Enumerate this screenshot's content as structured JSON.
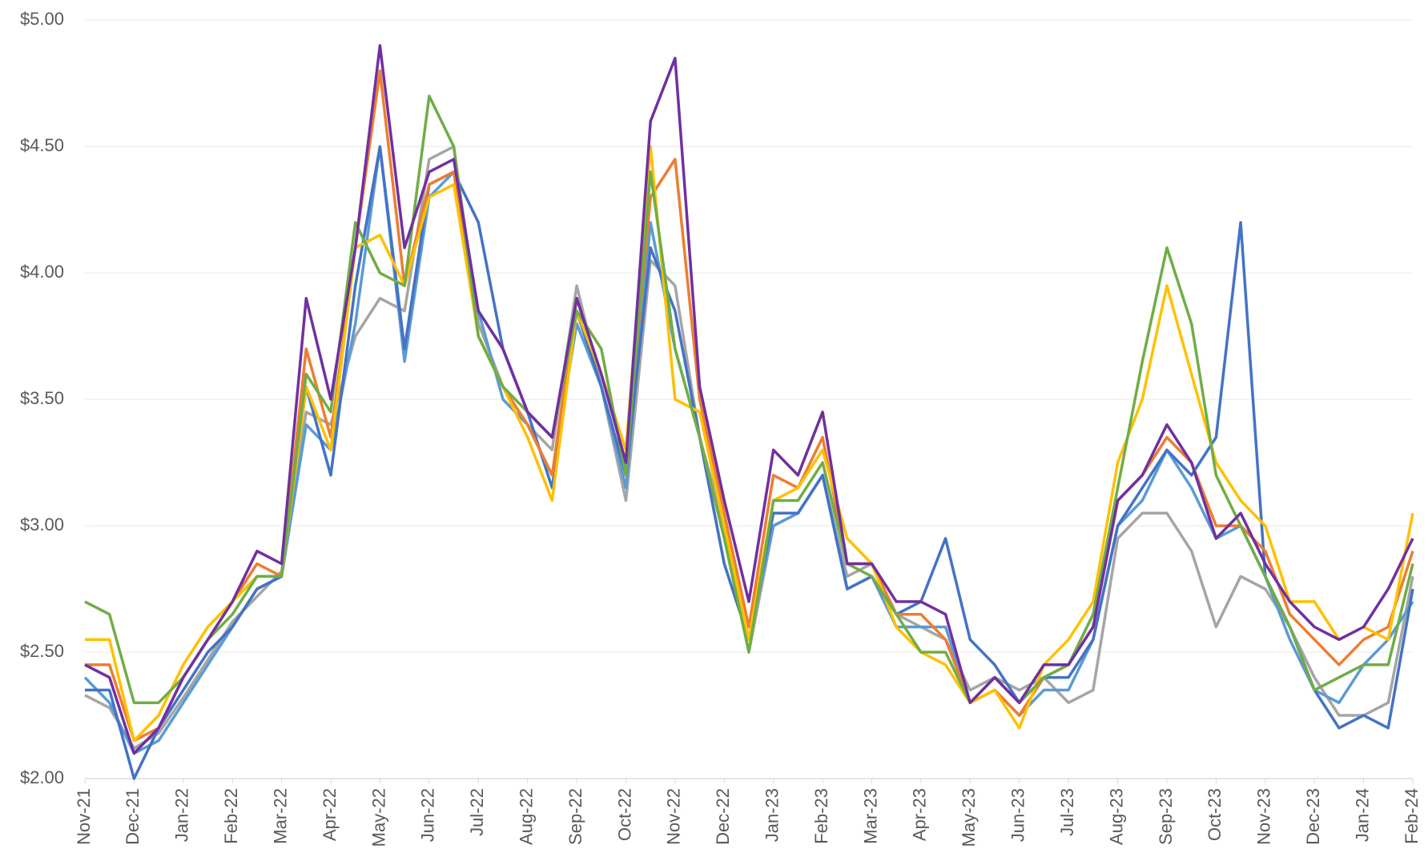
{
  "chart_data": {
    "type": "line",
    "categories": [
      "Nov-21",
      null,
      "Dec-21",
      null,
      "Jan-22",
      null,
      "Feb-22",
      null,
      "Mar-22",
      null,
      "Apr-22",
      null,
      "May-22",
      null,
      "Jun-22",
      null,
      "Jul-22",
      null,
      "Aug-22",
      null,
      "Sep-22",
      null,
      "Oct-22",
      null,
      "Nov-22",
      null,
      "Dec-22",
      null,
      "Jan-23",
      null,
      "Feb-23",
      null,
      "Mar-23",
      null,
      "Apr-23",
      null,
      "May-23",
      null,
      "Jun-23",
      null,
      "Jul-23",
      null,
      "Aug-23",
      null,
      "Sep-23",
      null,
      "Oct-23",
      null,
      "Nov-23",
      null,
      "Dec-23",
      null,
      "Jan-24",
      null,
      "Feb-24"
    ],
    "series": [
      {
        "color": "#a5a5a5",
        "values": [
          2.33,
          2.28,
          2.12,
          2.18,
          2.32,
          2.47,
          2.62,
          2.72,
          2.82,
          3.45,
          3.4,
          3.75,
          3.9,
          3.85,
          4.45,
          4.5,
          3.8,
          3.55,
          3.4,
          3.3,
          3.95,
          3.55,
          3.1,
          4.05,
          3.95,
          3.35,
          3.0,
          2.5,
          3.0,
          3.05,
          3.2,
          2.8,
          2.85,
          2.65,
          2.6,
          2.55,
          2.35,
          2.4,
          2.35,
          2.4,
          2.3,
          2.35,
          2.95,
          3.05,
          3.05,
          2.9,
          2.6,
          2.8,
          2.75,
          2.6,
          2.4,
          2.25,
          2.25,
          2.3,
          2.8
        ]
      },
      {
        "color": "#5b9bd5",
        "values": [
          2.4,
          2.3,
          2.1,
          2.15,
          2.3,
          2.45,
          2.6,
          2.75,
          2.8,
          3.4,
          3.3,
          3.8,
          4.5,
          3.65,
          4.3,
          4.4,
          3.85,
          3.5,
          3.4,
          3.2,
          3.8,
          3.55,
          3.15,
          4.2,
          3.7,
          3.35,
          2.85,
          2.55,
          3.0,
          3.05,
          3.2,
          2.75,
          2.8,
          2.6,
          2.6,
          2.6,
          2.3,
          2.35,
          2.25,
          2.35,
          2.35,
          2.55,
          3.0,
          3.1,
          3.3,
          3.15,
          2.95,
          3.0,
          2.8,
          2.55,
          2.35,
          2.3,
          2.45,
          2.55,
          2.7
        ]
      },
      {
        "color": "#4472c4",
        "values": [
          2.35,
          2.35,
          2.0,
          2.2,
          2.35,
          2.5,
          2.6,
          2.75,
          2.8,
          3.55,
          3.2,
          3.95,
          4.5,
          3.7,
          4.35,
          4.4,
          4.2,
          3.7,
          3.45,
          3.15,
          3.85,
          3.55,
          3.2,
          4.1,
          3.85,
          3.35,
          2.85,
          2.55,
          3.05,
          3.05,
          3.2,
          2.75,
          2.8,
          2.65,
          2.7,
          2.95,
          2.55,
          2.45,
          2.3,
          2.4,
          2.4,
          2.55,
          3.0,
          3.15,
          3.3,
          3.2,
          3.35,
          4.2,
          2.8,
          2.6,
          2.35,
          2.2,
          2.25,
          2.2,
          2.75
        ]
      },
      {
        "color": "#ed7d31",
        "values": [
          2.45,
          2.45,
          2.15,
          2.2,
          2.4,
          2.55,
          2.7,
          2.85,
          2.8,
          3.7,
          3.35,
          4.1,
          4.8,
          3.95,
          4.35,
          4.4,
          3.75,
          3.55,
          3.4,
          3.2,
          3.9,
          3.6,
          3.25,
          4.3,
          4.45,
          3.5,
          3.05,
          2.6,
          3.2,
          3.15,
          3.35,
          2.85,
          2.85,
          2.65,
          2.65,
          2.55,
          2.3,
          2.35,
          2.25,
          2.4,
          2.45,
          2.6,
          3.1,
          3.2,
          3.35,
          3.25,
          3.0,
          3.0,
          2.9,
          2.65,
          2.55,
          2.45,
          2.55,
          2.6,
          2.9
        ]
      },
      {
        "color": "#ffc000",
        "values": [
          2.55,
          2.55,
          2.15,
          2.25,
          2.45,
          2.6,
          2.7,
          2.8,
          2.8,
          3.55,
          3.3,
          4.1,
          4.15,
          3.95,
          4.3,
          4.35,
          3.75,
          3.55,
          3.35,
          3.1,
          3.85,
          3.6,
          3.3,
          4.5,
          3.5,
          3.45,
          3.0,
          2.55,
          3.1,
          3.15,
          3.3,
          2.95,
          2.85,
          2.6,
          2.5,
          2.45,
          2.3,
          2.35,
          2.2,
          2.45,
          2.55,
          2.7,
          3.25,
          3.5,
          3.95,
          3.6,
          3.25,
          3.1,
          3.0,
          2.7,
          2.7,
          2.55,
          2.6,
          2.55,
          3.05
        ]
      },
      {
        "color": "#70ad47",
        "values": [
          2.7,
          2.65,
          2.3,
          2.3,
          2.4,
          2.55,
          2.65,
          2.8,
          2.8,
          3.6,
          3.45,
          4.2,
          4.0,
          3.95,
          4.7,
          4.5,
          3.75,
          3.55,
          3.45,
          3.35,
          3.85,
          3.7,
          3.2,
          4.4,
          3.7,
          3.35,
          2.95,
          2.5,
          3.1,
          3.1,
          3.25,
          2.85,
          2.8,
          2.65,
          2.5,
          2.5,
          2.3,
          2.4,
          2.3,
          2.4,
          2.45,
          2.65,
          3.15,
          3.65,
          4.1,
          3.8,
          3.2,
          3.0,
          2.8,
          2.6,
          2.35,
          2.4,
          2.45,
          2.45,
          2.85
        ]
      },
      {
        "color": "#7030a0",
        "values": [
          2.45,
          2.4,
          2.1,
          2.2,
          2.4,
          2.55,
          2.7,
          2.9,
          2.85,
          3.9,
          3.5,
          4.1,
          4.9,
          4.1,
          4.4,
          4.45,
          3.85,
          3.7,
          3.45,
          3.35,
          3.9,
          3.6,
          3.25,
          4.6,
          4.85,
          3.55,
          3.1,
          2.7,
          3.3,
          3.2,
          3.45,
          2.85,
          2.85,
          2.7,
          2.7,
          2.65,
          2.3,
          2.4,
          2.3,
          2.45,
          2.45,
          2.6,
          3.1,
          3.2,
          3.4,
          3.25,
          2.95,
          3.05,
          2.85,
          2.7,
          2.6,
          2.55,
          2.6,
          2.75,
          2.95
        ]
      }
    ],
    "ylim": [
      2,
      5.08
    ],
    "yticks": [
      {
        "value": 2,
        "label": "$2.00"
      },
      {
        "value": 2.5,
        "label": "$2.50"
      },
      {
        "value": 3,
        "label": "$3.00"
      },
      {
        "value": 3.5,
        "label": "$3.50"
      },
      {
        "value": 4,
        "label": "$4.00"
      },
      {
        "value": 4.5,
        "label": "$4.50"
      },
      {
        "value": 5,
        "label": "$5.00"
      }
    ],
    "grid": true
  }
}
